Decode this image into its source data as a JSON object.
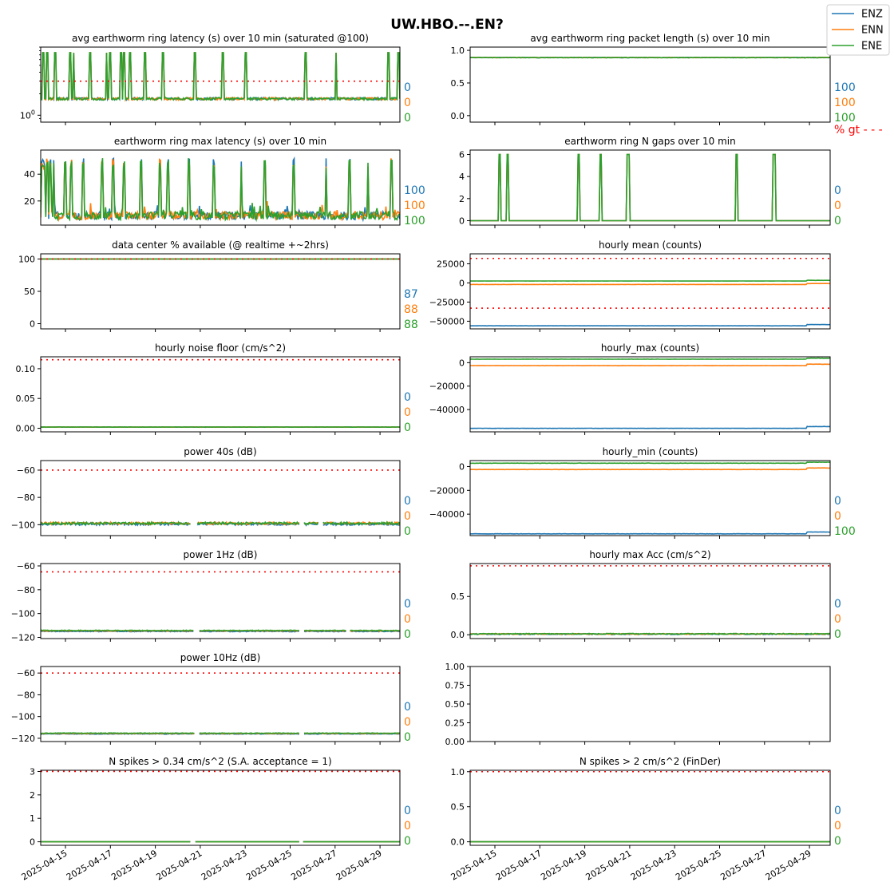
{
  "figure": {
    "title": "UW.HBO.--.EN?",
    "legend": {
      "placement": "top-right",
      "entries": [
        {
          "name": "ENZ",
          "color": "#1f77b4"
        },
        {
          "name": "ENN",
          "color": "#ff7f0e"
        },
        {
          "name": "ENE",
          "color": "#2ca02c"
        }
      ]
    },
    "x_tick_labels": [
      "2025-04-15",
      "2025-04-17",
      "2025-04-19",
      "2025-04-21",
      "2025-04-23",
      "2025-04-25",
      "2025-04-27",
      "2025-04-29"
    ],
    "threshold_color": "#ff0000",
    "pct_gt_label": "% gt - - -"
  },
  "chart_data": [
    {
      "title": "avg earthworm ring latency (s)   over 10 min (saturated @100)",
      "type": "line",
      "yscale": "log",
      "ylim": [
        0.8,
        9
      ],
      "yticks": [
        {
          "v": 1,
          "label": "10",
          "sup": "0"
        }
      ],
      "threshold": 3.0,
      "pct": [
        "0",
        "0",
        "0"
      ],
      "series_kind": "latency",
      "base": 1.7,
      "spike": 7.5,
      "spikes": [
        0.35,
        0.9,
        1.9,
        3.9,
        4.4,
        6.6,
        8.8,
        9.3,
        10.8,
        11.1,
        11.9,
        13.9,
        16.4,
        20.6,
        24.4,
        27.4,
        35.4,
        39.5,
        46.5,
        47.9
      ]
    },
    {
      "title": "avg earthworm ring packet length (s)   over 10 min",
      "type": "line",
      "ylim": [
        -0.1,
        1.05
      ],
      "yticks": [
        {
          "v": 0,
          "label": "0.0"
        },
        {
          "v": 0.5,
          "label": "0.5"
        },
        {
          "v": 1,
          "label": "1.0"
        }
      ],
      "threshold": null,
      "pct": [
        "100",
        "100",
        "100"
      ],
      "show_pct_gt": true,
      "series_kind": "flat",
      "values": [
        0.89,
        0.89,
        0.89
      ],
      "noise": 0.004
    },
    {
      "title": "earthworm ring max latency (s)   over 10 min",
      "type": "line",
      "ylim": [
        2,
        58
      ],
      "yticks": [
        {
          "v": 20,
          "label": "20"
        },
        {
          "v": 40,
          "label": "40"
        }
      ],
      "threshold": null,
      "pct": [
        "100",
        "100",
        "100"
      ],
      "series_kind": "maxlat",
      "base": 6,
      "spike": 52,
      "spikes": [
        0.2,
        0.5,
        0.85,
        1.3,
        1.8,
        3.4,
        4.2,
        5.9,
        8.5,
        10,
        11.5,
        13.9,
        16.5,
        17.6,
        20.5,
        23.9,
        27.7,
        30.9,
        34.9,
        39.4,
        42.7,
        45.2,
        48.4,
        49.8
      ]
    },
    {
      "title": "earthworm ring N gaps   over 10 min",
      "type": "line",
      "ylim": [
        -0.4,
        6.4
      ],
      "yticks": [
        {
          "v": 0,
          "label": "0"
        },
        {
          "v": 2,
          "label": "2"
        },
        {
          "v": 4,
          "label": "4"
        },
        {
          "v": 6,
          "label": "6"
        }
      ],
      "threshold": null,
      "pct": [
        "0",
        "0",
        "0"
      ],
      "series_kind": "gaps",
      "spike": 6,
      "spikes": [
        1.5,
        1.9,
        5.5,
        6.6,
        8.0,
        13.5,
        15.4
      ]
    },
    {
      "title": "data center % available (@ realtime +~2hrs)",
      "type": "line",
      "ylim": [
        -8,
        108
      ],
      "yticks": [
        {
          "v": 0,
          "label": "0"
        },
        {
          "v": 50,
          "label": "50"
        },
        {
          "v": 100,
          "label": "100"
        }
      ],
      "threshold": 100,
      "pct": [
        "87",
        "88",
        "88"
      ],
      "series_kind": "flat",
      "values": [
        100,
        100,
        100
      ],
      "noise": 0.15
    },
    {
      "title": "hourly mean (counts)",
      "type": "line",
      "ylim": [
        -60000,
        38000
      ],
      "yticks": [
        {
          "v": -50000,
          "label": "−50000"
        },
        {
          "v": -25000,
          "label": "−25000"
        },
        {
          "v": 0,
          "label": "0"
        },
        {
          "v": 25000,
          "label": "25000"
        }
      ],
      "threshold": [
        32000,
        -33000
      ],
      "pct": null,
      "series_kind": "counts",
      "values": [
        -56000,
        -2000,
        2500
      ],
      "tail": [
        1600,
        1200,
        900
      ]
    },
    {
      "title": "hourly noise floor (cm/s^2)",
      "type": "line",
      "ylim": [
        -0.006,
        0.12
      ],
      "yticks": [
        {
          "v": 0,
          "label": "0.00"
        },
        {
          "v": 0.05,
          "label": "0.05"
        },
        {
          "v": 0.1,
          "label": "0.10"
        }
      ],
      "threshold": 0.115,
      "pct": [
        "0",
        "0",
        "0"
      ],
      "series_kind": "flat",
      "values": [
        0.002,
        0.002,
        0.002
      ],
      "noise": 0.0003
    },
    {
      "title": "hourly_max (counts)",
      "type": "line",
      "ylim": [
        -59000,
        5000
      ],
      "yticks": [
        {
          "v": -40000,
          "label": "−40000"
        },
        {
          "v": -20000,
          "label": "−20000"
        },
        {
          "v": 0,
          "label": "0"
        }
      ],
      "threshold": null,
      "pct": null,
      "series_kind": "counts",
      "values": [
        -56000,
        -2500,
        3000
      ],
      "tail": [
        1500,
        1200,
        800
      ]
    },
    {
      "title": "power 40s (dB)",
      "type": "line",
      "ylim": [
        -108,
        -53
      ],
      "yticks": [
        {
          "v": -100,
          "label": "−100"
        },
        {
          "v": -80,
          "label": "−80"
        },
        {
          "v": -60,
          "label": "−60"
        }
      ],
      "threshold": -60,
      "pct": [
        "0",
        "0",
        "0"
      ],
      "series_kind": "flat",
      "values": [
        -99.5,
        -99,
        -99
      ],
      "noise": 0.9,
      "gaps": [
        [
          20.8,
          21.5
        ],
        [
          35.7,
          36.3
        ],
        [
          38.4,
          38.9
        ]
      ]
    },
    {
      "title": "hourly_min (counts)",
      "type": "line",
      "ylim": [
        -58000,
        5000
      ],
      "yticks": [
        {
          "v": -40000,
          "label": "−40000"
        },
        {
          "v": -20000,
          "label": "−20000"
        },
        {
          "v": 0,
          "label": "0"
        }
      ],
      "threshold": null,
      "pct": [
        "0",
        "0",
        "100"
      ],
      "series_kind": "counts",
      "values": [
        -56500,
        -2500,
        2800
      ],
      "tail": [
        1500,
        1300,
        800
      ]
    },
    {
      "title": "power 1Hz (dB)",
      "type": "line",
      "ylim": [
        -121,
        -58
      ],
      "yticks": [
        {
          "v": -120,
          "label": "−120"
        },
        {
          "v": -100,
          "label": "−100"
        },
        {
          "v": -80,
          "label": "−80"
        },
        {
          "v": -60,
          "label": "−60"
        }
      ],
      "threshold": -65,
      "pct": [
        "0",
        "0",
        "0"
      ],
      "series_kind": "flat",
      "values": [
        -115,
        -114.5,
        -114.2
      ],
      "noise": 0.3,
      "gaps": [
        [
          21.2,
          21.8
        ],
        [
          35.7,
          36.3
        ],
        [
          42.2,
          42.6
        ]
      ]
    },
    {
      "title": "hourly max Acc (cm/s^2)",
      "type": "line",
      "ylim": [
        -0.05,
        0.93
      ],
      "yticks": [
        {
          "v": 0,
          "label": "0.0"
        },
        {
          "v": 0.5,
          "label": "0.5"
        }
      ],
      "threshold": 0.9,
      "pct": [
        "0",
        "0",
        "0"
      ],
      "series_kind": "flat",
      "values": [
        0.008,
        0.01,
        0.012
      ],
      "noise": 0.006
    },
    {
      "title": "power 10Hz (dB)",
      "type": "line",
      "ylim": [
        -123,
        -54
      ],
      "yticks": [
        {
          "v": -120,
          "label": "−120"
        },
        {
          "v": -100,
          "label": "−100"
        },
        {
          "v": -80,
          "label": "−80"
        },
        {
          "v": -60,
          "label": "−60"
        }
      ],
      "threshold": -60,
      "pct": [
        "0",
        "0",
        "0"
      ],
      "series_kind": "flat",
      "values": [
        -116,
        -115.6,
        -115.3
      ],
      "noise": 0.25,
      "gaps": [
        [
          21.3,
          21.8
        ],
        [
          35.7,
          36.3
        ]
      ]
    },
    {
      "title": "",
      "type": "line",
      "ylim": [
        0,
        1
      ],
      "yticks": [
        {
          "v": 0,
          "label": "0.00"
        },
        {
          "v": 0.25,
          "label": "0.25"
        },
        {
          "v": 0.5,
          "label": "0.50"
        },
        {
          "v": 0.75,
          "label": "0.75"
        },
        {
          "v": 1,
          "label": "1.00"
        }
      ],
      "threshold": null,
      "pct": null,
      "series_kind": "none"
    },
    {
      "title": "N spikes > 0.34 cm/s^2 (S.A. acceptance = 1)",
      "type": "line",
      "ylim": [
        -0.15,
        3.05
      ],
      "yticks": [
        {
          "v": 0,
          "label": "0"
        },
        {
          "v": 1,
          "label": "1"
        },
        {
          "v": 2,
          "label": "2"
        },
        {
          "v": 3,
          "label": "3"
        }
      ],
      "threshold": 3,
      "pct": [
        "0",
        "0",
        "0"
      ],
      "series_kind": "flat",
      "values": [
        0,
        0,
        0
      ],
      "noise": 0,
      "gaps": [
        [
          20.8,
          21.3
        ],
        [
          35.7,
          36.2
        ]
      ]
    },
    {
      "title": "N spikes > 2 cm/s^2 (FinDer)",
      "type": "line",
      "ylim": [
        -0.05,
        1.02
      ],
      "yticks": [
        {
          "v": 0,
          "label": "0.0"
        },
        {
          "v": 0.5,
          "label": "0.5"
        },
        {
          "v": 1,
          "label": "1.0"
        }
      ],
      "threshold": 1,
      "pct": [
        "0",
        "0",
        "0"
      ],
      "series_kind": "flat",
      "values": [
        0,
        0,
        0
      ],
      "noise": 0
    }
  ]
}
